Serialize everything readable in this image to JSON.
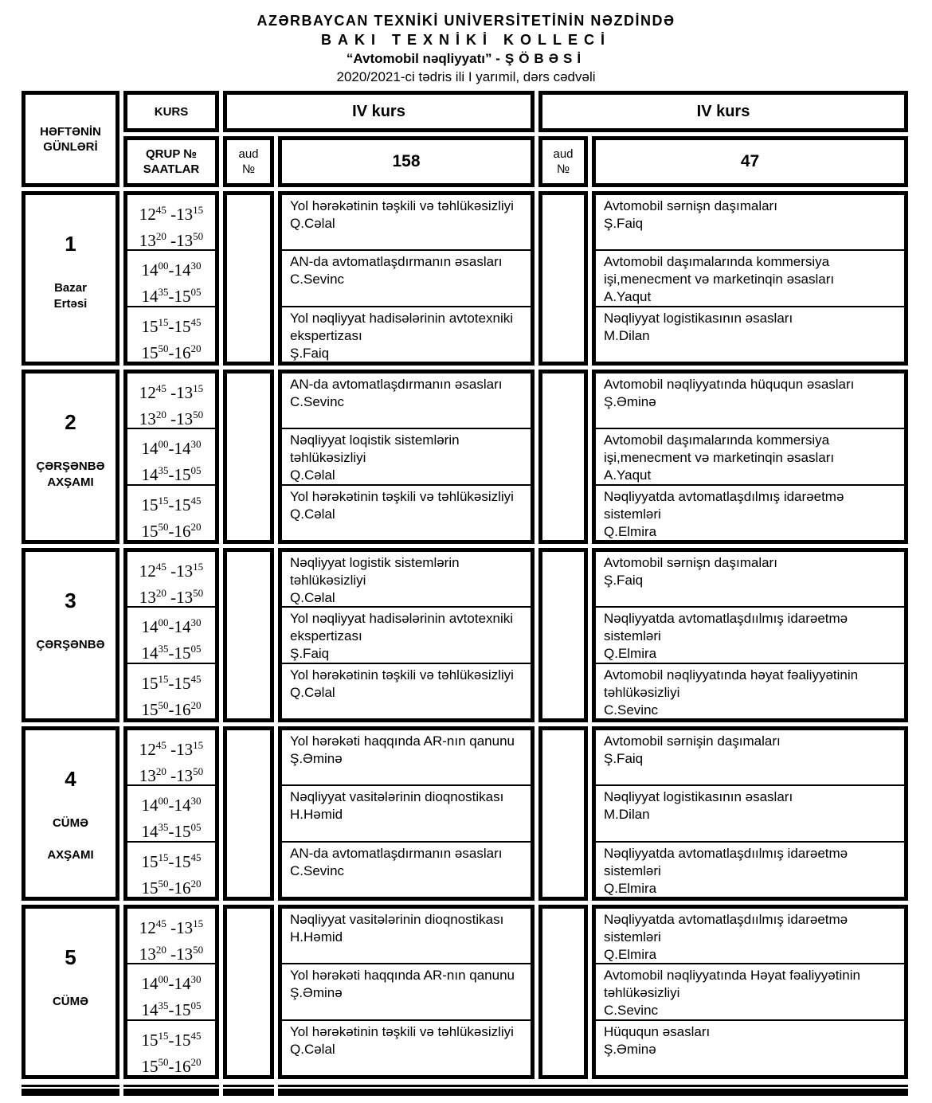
{
  "title": {
    "line1": "AZƏRBAYCAN TEXNİKİ UNİVERSİTETİNİN NƏZDİNDƏ",
    "line2": "BAKI TEXNİKİ KOLLECİ",
    "line3_prefix": "“Avtomobil nəqliyyatı” -",
    "line3_spaced": "ŞÖBƏSİ",
    "line4": "2020/2021-ci tədris ili I yarımil, dərs cədvəli"
  },
  "table": {
    "corner_line1": "HƏFTƏNİN",
    "corner_line2": "GÜNLƏRİ",
    "kurs_label": "KURS",
    "qrup_label_line1": "QRUP №",
    "qrup_label_line2": "SAATLAR",
    "aud_line1": "aud",
    "aud_line2": "№",
    "groups": [
      {
        "kurs": "IV kurs",
        "number": "158"
      },
      {
        "kurs": "IV kurs",
        "number": "47"
      }
    ],
    "time_slots": [
      {
        "l1": {
          "a": "12",
          "as": "45",
          "b": " -13",
          "bs": "15"
        },
        "l2": {
          "a": "13",
          "as": "20",
          "b": " -13",
          "bs": "50"
        }
      },
      {
        "l1": {
          "a": "14",
          "as": "00",
          "b": "-14",
          "bs": "30"
        },
        "l2": {
          "a": "14",
          "as": "35",
          "b": "-15",
          "bs": "05"
        }
      },
      {
        "l1": {
          "a": "15",
          "as": "15",
          "b": "-15",
          "bs": "45"
        },
        "l2": {
          "a": "15",
          "as": "50",
          "b": "-16",
          "bs": "20"
        }
      }
    ],
    "days": [
      {
        "number": "1",
        "name_lines": [
          "Bazar",
          "Ertəsi"
        ],
        "g158": [
          {
            "title": "Yol hərəkətinin təşkili və təhlükəsizliyi",
            "teacher": "Q.Cəlal"
          },
          {
            "title": "AN-da avtomatlaşdırmanın əsasları",
            "teacher": "C.Sevinc"
          },
          {
            "title": "Yol nəqliyyat hadisələrinin avtotexniki ekspertizası",
            "teacher": "Ş.Faiq"
          }
        ],
        "g47": [
          {
            "title": "Avtomobil sərnişn daşımaları",
            "teacher": "Ş.Faiq"
          },
          {
            "title": "Avtomobil daşımalarında kommersiya işi,menecment və marketinqin əsasları",
            "teacher": "A.Yaqut"
          },
          {
            "title": "Nəqliyyat logistikasının əsasları",
            "teacher": "M.Dilan"
          }
        ]
      },
      {
        "number": "2",
        "name_lines": [
          "ÇƏRŞƏNBƏ",
          "AXŞAMI"
        ],
        "g158": [
          {
            "title": "AN-da avtomatlaşdırmanın əsasları",
            "teacher": "C.Sevinc"
          },
          {
            "title": "Nəqliyyat loqistik sistemlərin təhlükəsizliyi",
            "teacher": "Q.Cəlal"
          },
          {
            "title": "Yol hərəkətinin təşkili və təhlükəsizliyi",
            "teacher": "Q.Cəlal"
          }
        ],
        "g47": [
          {
            "title": "Avtomobil nəqliyyatında hüququn əsasları",
            "teacher": "Ş.Əminə"
          },
          {
            "title": "Avtomobil daşımalarında kommersiya işi,menecment və marketinqin əsasları",
            "teacher": "A.Yaqut"
          },
          {
            "title": "Nəqliyyatda avtomatlaşdılmış idarəetmə sistemləri",
            "teacher": "Q.Elmira"
          }
        ]
      },
      {
        "number": "3",
        "name_lines": [
          "ÇƏRŞƏNBƏ"
        ],
        "g158": [
          {
            "title": "Nəqliyyat logistik sistemlərin təhlükəsizliyi",
            "teacher": "Q.Cəlal"
          },
          {
            "title": "Yol nəqliyyat hadisələrinin avtotexniki ekspertizası",
            "teacher": "Ş.Faiq"
          },
          {
            "title": "Yol hərəkətinin təşkili və təhlükəsizliyi",
            "teacher": "Q.Cəlal"
          }
        ],
        "g47": [
          {
            "title": "Avtomobil sərnişn daşımaları",
            "teacher": "Ş.Faiq"
          },
          {
            "title": "Nəqliyyatda avtomatlaşdıılmış idarəetmə sistemləri",
            "teacher": "Q.Elmira"
          },
          {
            "title": "Avtomobil nəqliyyatında həyat fəaliyyətinin təhlükəsizliyi",
            "teacher": "C.Sevinc"
          }
        ]
      },
      {
        "number": "4",
        "name_lines": [
          "CÜMƏ",
          "",
          "AXŞAMI"
        ],
        "g158": [
          {
            "title": "Yol hərəkəti haqqında AR-nın qanunu",
            "teacher": "Ş.Əminə"
          },
          {
            "title": "Nəqliyyat vasitələrinin dioqnostikası",
            "teacher": "H.Həmid"
          },
          {
            "title": "AN-da avtomatlaşdırmanın əsasları",
            "teacher": "C.Sevinc"
          }
        ],
        "g47": [
          {
            "title": "Avtomobil sərnişin daşımaları",
            "teacher": "Ş.Faiq"
          },
          {
            "title": "Nəqliyyat logistikasının əsasları",
            "teacher": "M.Dilan"
          },
          {
            "title": "Nəqliyyatda avtomatlaşdıılmış idarəetmə sistemləri",
            "teacher": "Q.Elmira"
          }
        ]
      },
      {
        "number": "5",
        "name_lines": [
          "CÜMƏ"
        ],
        "g158": [
          {
            "title": "Nəqliyyat vasitələrinin dioqnostikası",
            "teacher": "H.Həmid"
          },
          {
            "title": "Yol hərəkəti haqqında AR-nın qanunu",
            "teacher": "Ş.Əminə"
          },
          {
            "title": "Yol hərəkətinin təşkili və təhlükəsizliyi",
            "teacher": "Q.Cəlal"
          }
        ],
        "g47": [
          {
            "title": "Nəqliyyatda avtomatlaşdıılmış idarəetmə sistemləri",
            "teacher": "Q.Elmira"
          },
          {
            "title": "Avtomobil nəqliyyatında Həyat fəaliyyətinin təhlükəsizliyi",
            "teacher": "C.Sevinc"
          },
          {
            "title": "Hüququn əsasları",
            "teacher": "Ş.Əminə"
          }
        ]
      }
    ]
  }
}
